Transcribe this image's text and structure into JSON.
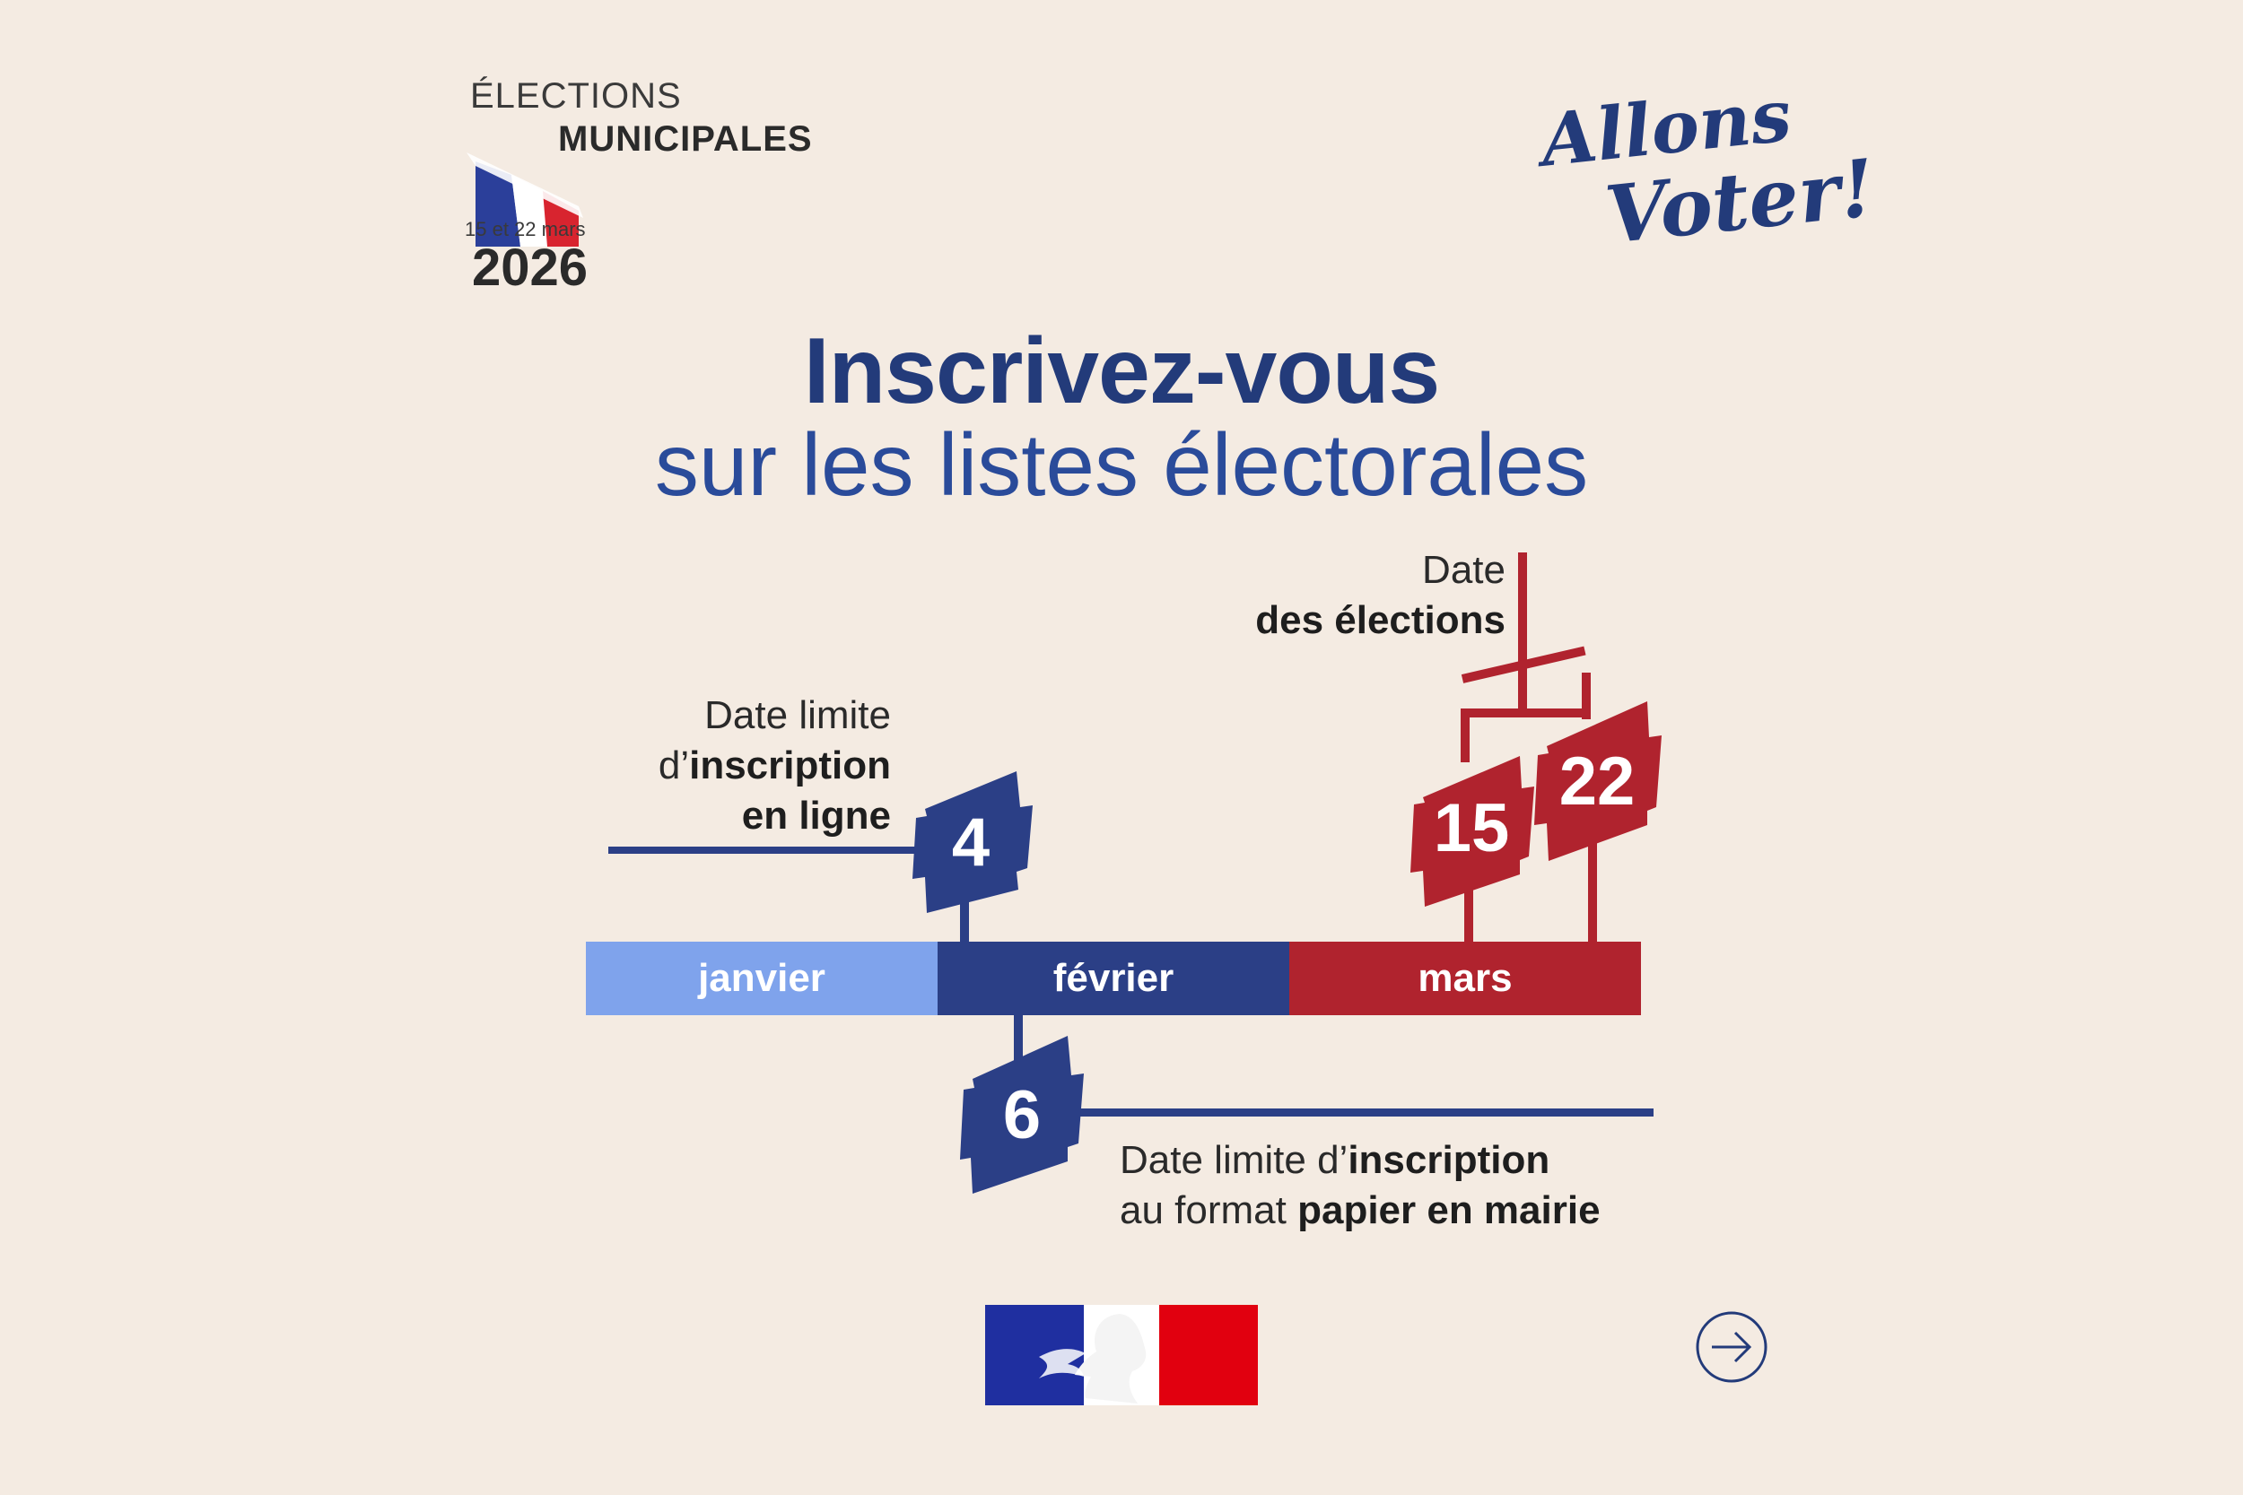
{
  "logo": {
    "line1": "ÉLECTIONS",
    "line2": "MUNICIPALES",
    "dates": "15 et 22 mars",
    "year": "2026",
    "flag_colors": [
      "#2b3f9a",
      "#ffffff",
      "#d8242f"
    ]
  },
  "slogan": {
    "line1": "Allons",
    "line2": "Voter!"
  },
  "headline": {
    "main": "Inscrivez-vous",
    "sub": "sur les listes électorales"
  },
  "timeline": {
    "months": [
      {
        "label": "janvier",
        "color": "#7fa3ec"
      },
      {
        "label": "février",
        "color": "#2b3f86"
      },
      {
        "label": "mars",
        "color": "#b0232e"
      }
    ],
    "online_deadline": {
      "day": "4",
      "text_prefix": "Date limite",
      "text_mid_prefix": "d’",
      "text_mid_bold": "inscription",
      "text_bold": "en ligne"
    },
    "paper_deadline": {
      "day": "6",
      "line1_prefix": "Date limite d’",
      "line1_bold": "inscription",
      "line2_prefix": "au format ",
      "line2_bold": "papier en mairie"
    },
    "election": {
      "days": [
        "15",
        "22"
      ],
      "text_prefix": "Date",
      "text_bold": "des élections"
    }
  },
  "footer": {
    "emblem": "marianne-republique-francaise",
    "next_icon": "arrow-right-circle-icon"
  },
  "colors": {
    "background": "#f4ebe2",
    "blue": "#2b3f86",
    "light_blue": "#7fa3ec",
    "red": "#b0232e",
    "title_blue": "#233b7a"
  }
}
